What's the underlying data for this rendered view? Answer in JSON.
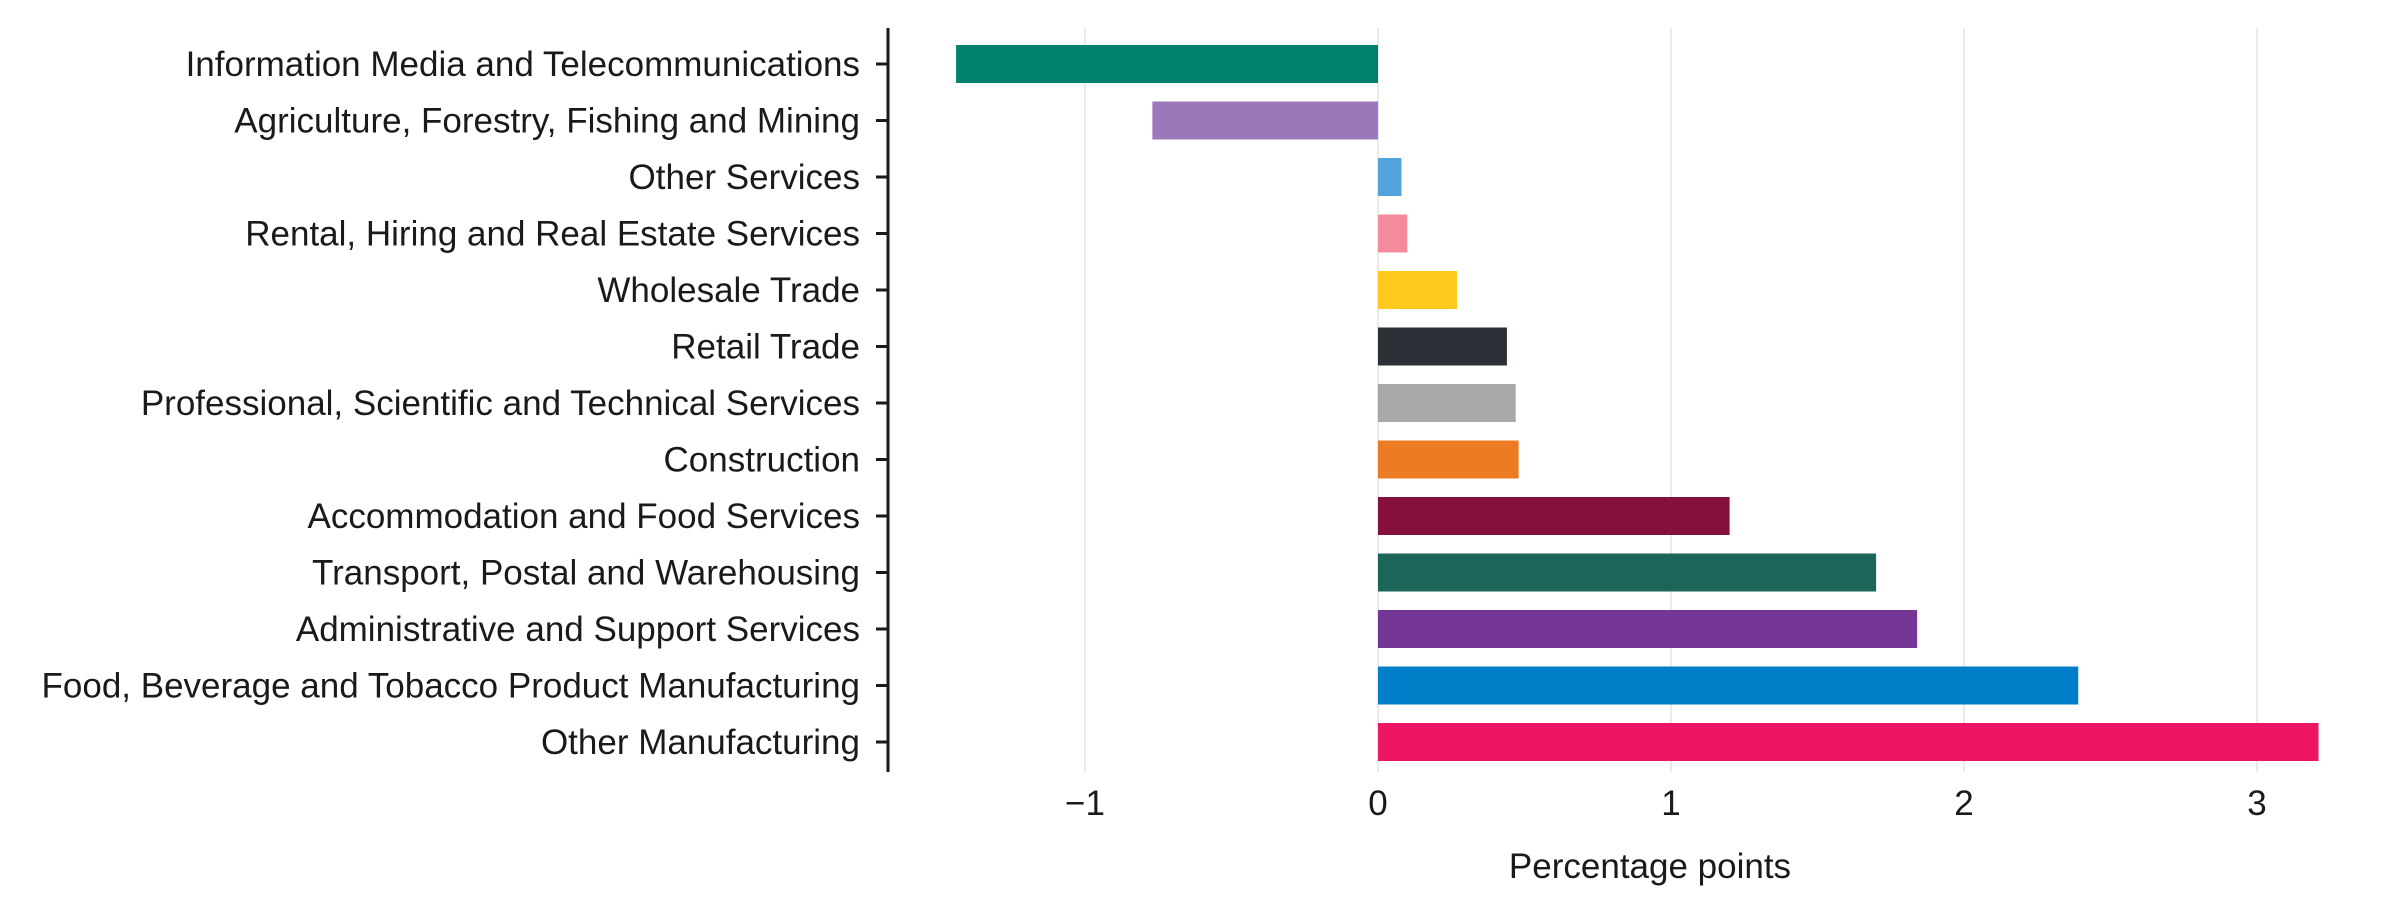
{
  "chart_data": {
    "type": "bar",
    "orientation": "horizontal",
    "categories": [
      "Information Media and Telecommunications",
      "Agriculture, Forestry, Fishing and Mining",
      "Other Services",
      "Rental, Hiring and Real Estate Services",
      "Wholesale Trade",
      "Retail Trade",
      "Professional, Scientific and Technical Services",
      "Construction",
      "Accommodation and Food Services",
      "Transport, Postal and Warehousing",
      "Administrative and Support Services",
      "Food, Beverage and Tobacco Product Manufacturing",
      "Other Manufacturing"
    ],
    "values": [
      -1.44,
      -0.77,
      0.08,
      0.1,
      0.27,
      0.44,
      0.47,
      0.48,
      1.2,
      1.7,
      1.84,
      2.39,
      3.21
    ],
    "colors": [
      "#00806F",
      "#9B78BA",
      "#54A2DC",
      "#F48A9B",
      "#FFC91E",
      "#2B2F36",
      "#A8A8A8",
      "#EC7B23",
      "#84103B",
      "#1B6659",
      "#743795",
      "#007EC7",
      "#EE1565"
    ],
    "xlabel": "Percentage points",
    "ylabel": "",
    "title": "",
    "xlim": [
      -1.67,
      3.3
    ],
    "xticks": [
      -1,
      0,
      1,
      2,
      3
    ],
    "xtick_labels": [
      "−1",
      "0",
      "1",
      "2",
      "3"
    ],
    "grid": "vertical"
  }
}
